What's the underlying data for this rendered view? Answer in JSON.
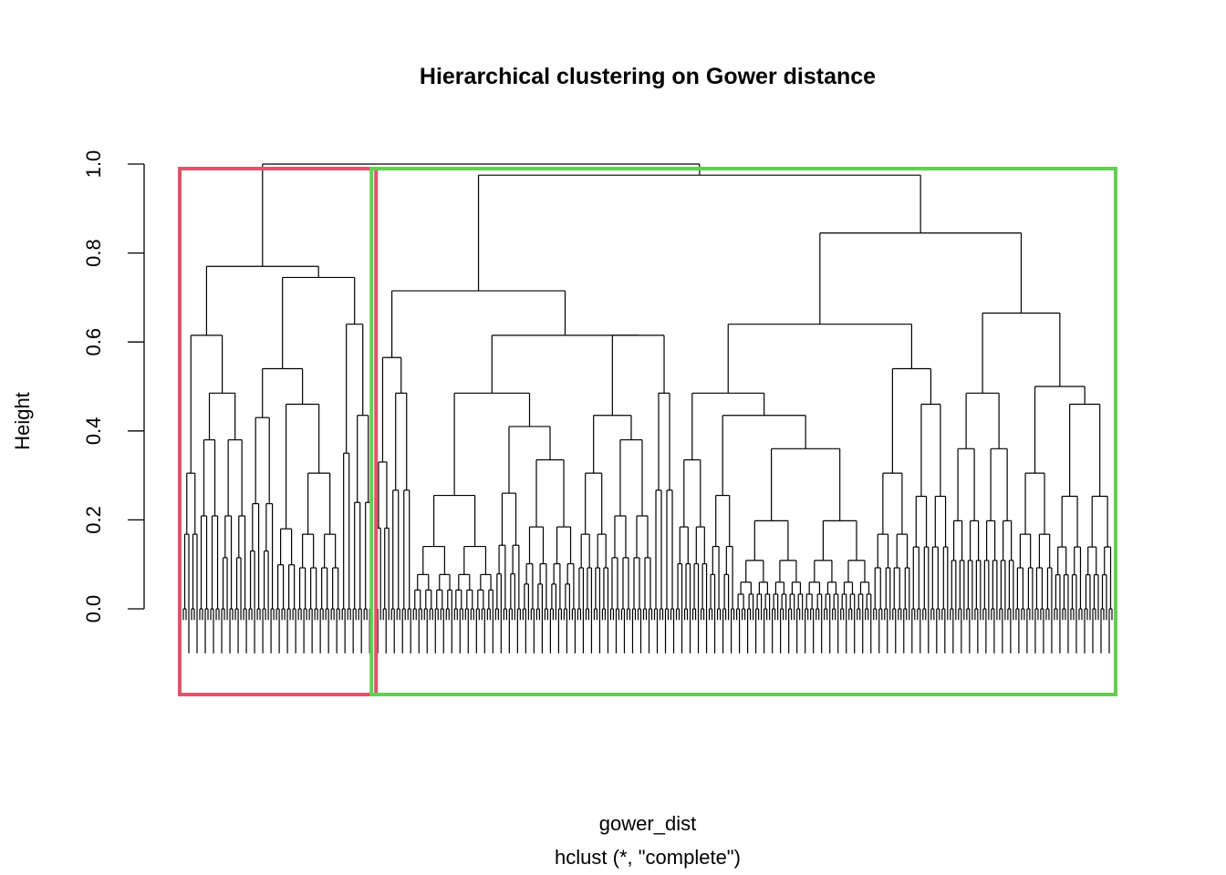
{
  "chart_data": {
    "type": "dendrogram",
    "title": "Hierarchical clustering on Gower distance",
    "xlabel": "gower_dist",
    "sublabel": "hclust (*, \"complete\")",
    "ylabel": "Height",
    "ylim": [
      0,
      1.0
    ],
    "yticks": [
      "0.0",
      "0.2",
      "0.4",
      "0.6",
      "0.8",
      "1.0"
    ],
    "ytick_values": [
      0,
      0.2,
      0.4,
      0.6,
      0.8,
      1.0
    ],
    "clusters_k": 2,
    "cluster_colors": [
      "#DF536B",
      "#61D04F"
    ],
    "cluster_leaf_counts": [
      70,
      270
    ],
    "tree": {
      "h": 1.0,
      "c": [
        {
          "h": 0.77,
          "c": [
            {
              "h": 0.615,
              "c": [
                {
                  "n": 6,
                  "h": 0.305
                },
                {
                  "h": 0.485,
                  "c": [
                    {
                      "n": 8,
                      "h": 0.38
                    },
                    {
                      "n": 10,
                      "h": 0.38
                    }
                  ]
                }
              ]
            },
            {
              "h": 0.745,
              "c": [
                {
                  "h": 0.54,
                  "c": [
                    {
                      "n": 10,
                      "h": 0.43
                    },
                    {
                      "h": 0.46,
                      "c": [
                        {
                          "n": 8,
                          "h": 0.18
                        },
                        {
                          "n": 16,
                          "h": 0.305
                        }
                      ]
                    }
                  ]
                },
                {
                  "h": 0.64,
                  "c": [
                    {
                      "n": 4,
                      "h": 0.35
                    },
                    {
                      "n": 8,
                      "h": 0.435
                    }
                  ]
                }
              ]
            }
          ]
        },
        {
          "h": 0.975,
          "c": [
            {
              "h": 0.715,
              "c": [
                {
                  "h": 0.565,
                  "c": [
                    {
                      "n": 6,
                      "h": 0.33
                    },
                    {
                      "n": 8,
                      "h": 0.485
                    }
                  ]
                },
                {
                  "h": 0.615,
                  "c": [
                    {
                      "h": 0.485,
                      "c": [
                        {
                          "n": 30,
                          "h": 0.255
                        },
                        {
                          "h": 0.41,
                          "c": [
                            {
                              "n": 10,
                              "h": 0.26
                            },
                            {
                              "n": 20,
                              "h": 0.335
                            }
                          ]
                        }
                      ]
                    },
                    {
                      "h": 0.615,
                      "c": [
                        {
                          "h": 0.435,
                          "c": [
                            {
                              "n": 12,
                              "h": 0.305
                            },
                            {
                              "n": 16,
                              "h": 0.38
                            }
                          ]
                        },
                        {
                          "n": 8,
                          "h": 0.485
                        }
                      ]
                    }
                  ]
                }
              ]
            },
            {
              "h": 0.845,
              "c": [
                {
                  "h": 0.64,
                  "c": [
                    {
                      "h": 0.485,
                      "c": [
                        {
                          "n": 12,
                          "h": 0.335
                        },
                        {
                          "h": 0.435,
                          "c": [
                            {
                              "n": 10,
                              "h": 0.255
                            },
                            {
                              "n": 50,
                              "h": 0.36
                            }
                          ]
                        }
                      ]
                    },
                    {
                      "h": 0.54,
                      "c": [
                        {
                          "n": 14,
                          "h": 0.305
                        },
                        {
                          "n": 14,
                          "h": 0.46
                        }
                      ]
                    }
                  ]
                },
                {
                  "h": 0.665,
                  "c": [
                    {
                      "h": 0.485,
                      "c": [
                        {
                          "n": 12,
                          "h": 0.36
                        },
                        {
                          "n": 12,
                          "h": 0.36
                        }
                      ]
                    },
                    {
                      "h": 0.5,
                      "c": [
                        {
                          "n": 14,
                          "h": 0.305
                        },
                        {
                          "n": 22,
                          "h": 0.46
                        }
                      ]
                    }
                  ]
                }
              ]
            }
          ]
        }
      ]
    }
  }
}
